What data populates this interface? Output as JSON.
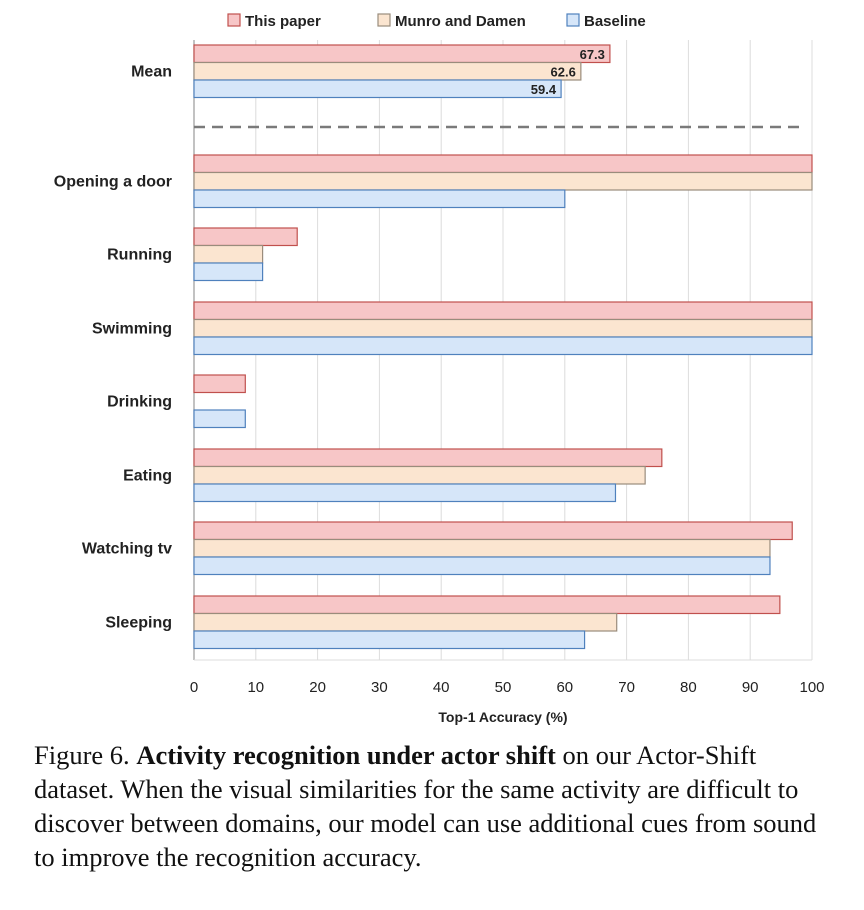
{
  "chart_data": {
    "type": "bar",
    "orientation": "horizontal",
    "categories": [
      "Mean",
      "Opening a door",
      "Running",
      "Swimming",
      "Drinking",
      "Eating",
      "Watching tv",
      "Sleeping"
    ],
    "series": [
      {
        "name": "This paper",
        "values": [
          67.3,
          100,
          16.7,
          100,
          8.3,
          75.7,
          96.8,
          94.8
        ]
      },
      {
        "name": "Munro and Damen",
        "values": [
          62.6,
          100,
          11.1,
          100,
          0,
          73.0,
          93.2,
          68.4
        ]
      },
      {
        "name": "Baseline",
        "values": [
          59.4,
          60,
          11.1,
          100,
          8.3,
          68.2,
          93.2,
          63.2
        ]
      }
    ],
    "data_labels": {
      "category": "Mean",
      "values": [
        "67.3",
        "62.6",
        "59.4"
      ]
    },
    "xlabel": "Top-1 Accuracy (%)",
    "xlim": [
      0,
      100
    ],
    "xticks": [
      0,
      10,
      20,
      30,
      40,
      50,
      60,
      70,
      80,
      90,
      100
    ],
    "grid": true,
    "legend": "top",
    "separator_after": "Mean",
    "colors": {
      "This paper": {
        "fill": "#f7c6c7",
        "stroke": "#c0504d"
      },
      "Munro and Damen": {
        "fill": "#fbe5d0",
        "stroke": "#9a8c7c"
      },
      "Baseline": {
        "fill": "#d6e6f9",
        "stroke": "#4f81bd"
      }
    }
  },
  "caption": {
    "prefix": "Figure 6.",
    "bold": "Activity recognition under actor shift",
    "rest": "on our Actor-Shift dataset. When the visual similarities for the same activity are difficult to discover between domains, our model can use additional cues from sound to improve the recognition accuracy."
  }
}
